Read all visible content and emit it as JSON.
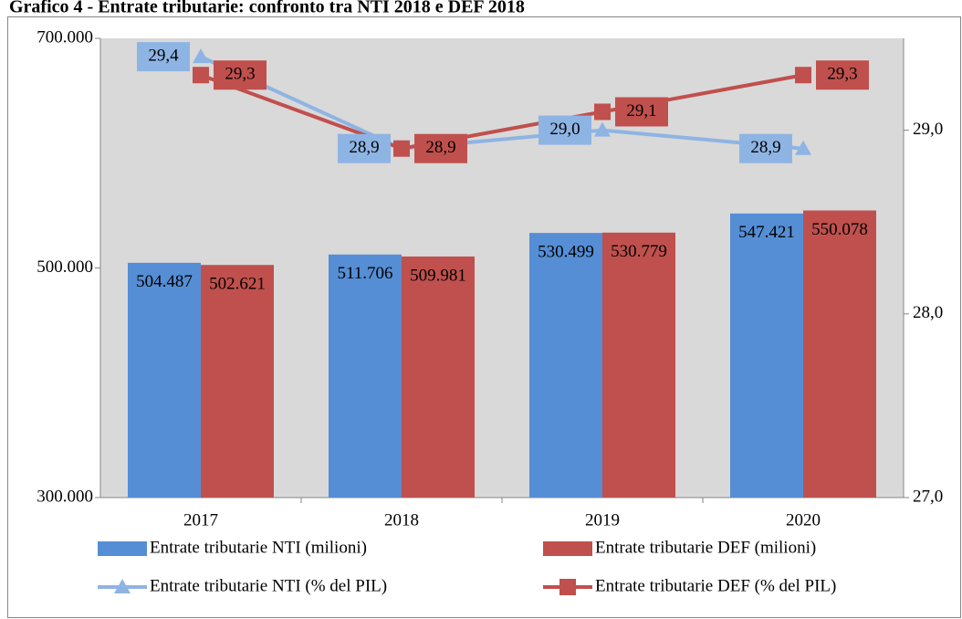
{
  "chart_data": {
    "type": "bar_line",
    "title": "Grafico 4 - Entrate tributarie: confronto tra NTI 2018 e DEF 2018",
    "categories": [
      "2017",
      "2018",
      "2019",
      "2020"
    ],
    "ylim": [
      300000,
      700000
    ],
    "yticks": [
      {
        "value": 300000,
        "label": "300.000"
      },
      {
        "value": 500000,
        "label": "500.000"
      },
      {
        "value": 700000,
        "label": "700.000"
      }
    ],
    "y2lim": [
      27,
      29.5
    ],
    "y2ticks": [
      {
        "value": 27,
        "label": "27,0"
      },
      {
        "value": 28,
        "label": "28,0"
      },
      {
        "value": 29,
        "label": "29,0"
      }
    ],
    "series": [
      {
        "name": "Entrate tributarie NTI  (milioni)",
        "kind": "bar",
        "color": "#558ed5",
        "values": [
          504487,
          511706,
          530499,
          547421
        ],
        "value_labels": [
          "504.487",
          "511.706",
          "530.499",
          "547.421"
        ]
      },
      {
        "name": "Entrate tributarie DEF (milioni)",
        "kind": "bar",
        "color": "#c0504d",
        "values": [
          502621,
          509981,
          530779,
          550078
        ],
        "value_labels": [
          "502.621",
          "509.981",
          "530.779",
          "550.078"
        ]
      },
      {
        "name": "Entrate tributarie NTI (% del PIL)",
        "kind": "line",
        "marker": "triangle",
        "axis": "y2",
        "color": "#8eb4e3",
        "values": [
          29.4,
          28.9,
          29.0,
          28.9
        ],
        "value_labels": [
          "29,4",
          "28,9",
          "29,0",
          "28,9"
        ]
      },
      {
        "name": "Entrate tributarie DEF (% del PIL)",
        "kind": "line",
        "marker": "square",
        "axis": "y2",
        "color": "#c0504d",
        "values": [
          29.3,
          28.9,
          29.1,
          29.3
        ],
        "value_labels": [
          "29,3",
          "28,9",
          "29,1",
          "29,3"
        ]
      }
    ]
  }
}
